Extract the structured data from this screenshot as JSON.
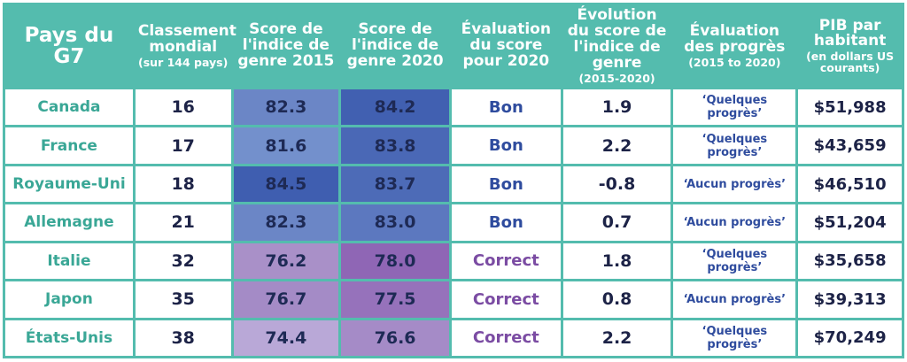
{
  "table": {
    "header": [
      {
        "title": "Pays du G7"
      },
      {
        "title": "Classement mondial",
        "subtitle": "(sur 144 pays)"
      },
      {
        "title": "Score de l'indice de genre 2015"
      },
      {
        "title": "Score de l'indice de genre 2020"
      },
      {
        "title": "Évaluation du score pour 2020"
      },
      {
        "title": "Évolution du score de l'indice de genre",
        "subtitle": "(2015-2020)"
      },
      {
        "title": "Évaluation des progrès",
        "subtitle": "(2015 to 2020)"
      },
      {
        "title": "PIB par habitant",
        "subtitle": "(en dollars US courants)"
      }
    ],
    "rows": [
      [
        "Canada",
        "16",
        "82.3",
        "84.2",
        "Bon",
        "1.9",
        "‘Quelques progrès’",
        "$51,988"
      ],
      [
        "France",
        "17",
        "81.6",
        "83.8",
        "Bon",
        "2.2",
        "‘Quelques progrès’",
        "$43,659"
      ],
      [
        "Royaume-Uni",
        "18",
        "84.5",
        "83.7",
        "Bon",
        "-0.8",
        "‘Aucun progrès’",
        "$46,510"
      ],
      [
        "Allemagne",
        "21",
        "82.3",
        "83.0",
        "Bon",
        "0.7",
        "‘Aucun progrès’",
        "$51,204"
      ],
      [
        "Italie",
        "32",
        "76.2",
        "78.0",
        "Correct",
        "1.8",
        "‘Quelques progrès’",
        "$35,658"
      ],
      [
        "Japon",
        "35",
        "76.7",
        "77.5",
        "Correct",
        "0.8",
        "‘Aucun progrès’",
        "$39,313"
      ],
      [
        "États-Unis",
        "38",
        "74.4",
        "76.6",
        "Correct",
        "2.2",
        "‘Quelques progrès’",
        "$70,249"
      ]
    ],
    "score_colors": [
      [
        "#6b86c6",
        "#4160b1"
      ],
      [
        "#7390cc",
        "#4a68b6"
      ],
      [
        "#3f5eb0",
        "#4d6bb7"
      ],
      [
        "#6b86c6",
        "#5c78bf"
      ],
      [
        "#a990c8",
        "#8f66b5"
      ],
      [
        "#a48bc6",
        "#9672bb"
      ],
      [
        "#b9a8d7",
        "#a58bc7"
      ]
    ],
    "evaluation_colors": [
      "#2f4c9e",
      "#2f4c9e",
      "#2f4c9e",
      "#2f4c9e",
      "#7b4ca3",
      "#7b4ca3",
      "#7b4ca3"
    ]
  }
}
